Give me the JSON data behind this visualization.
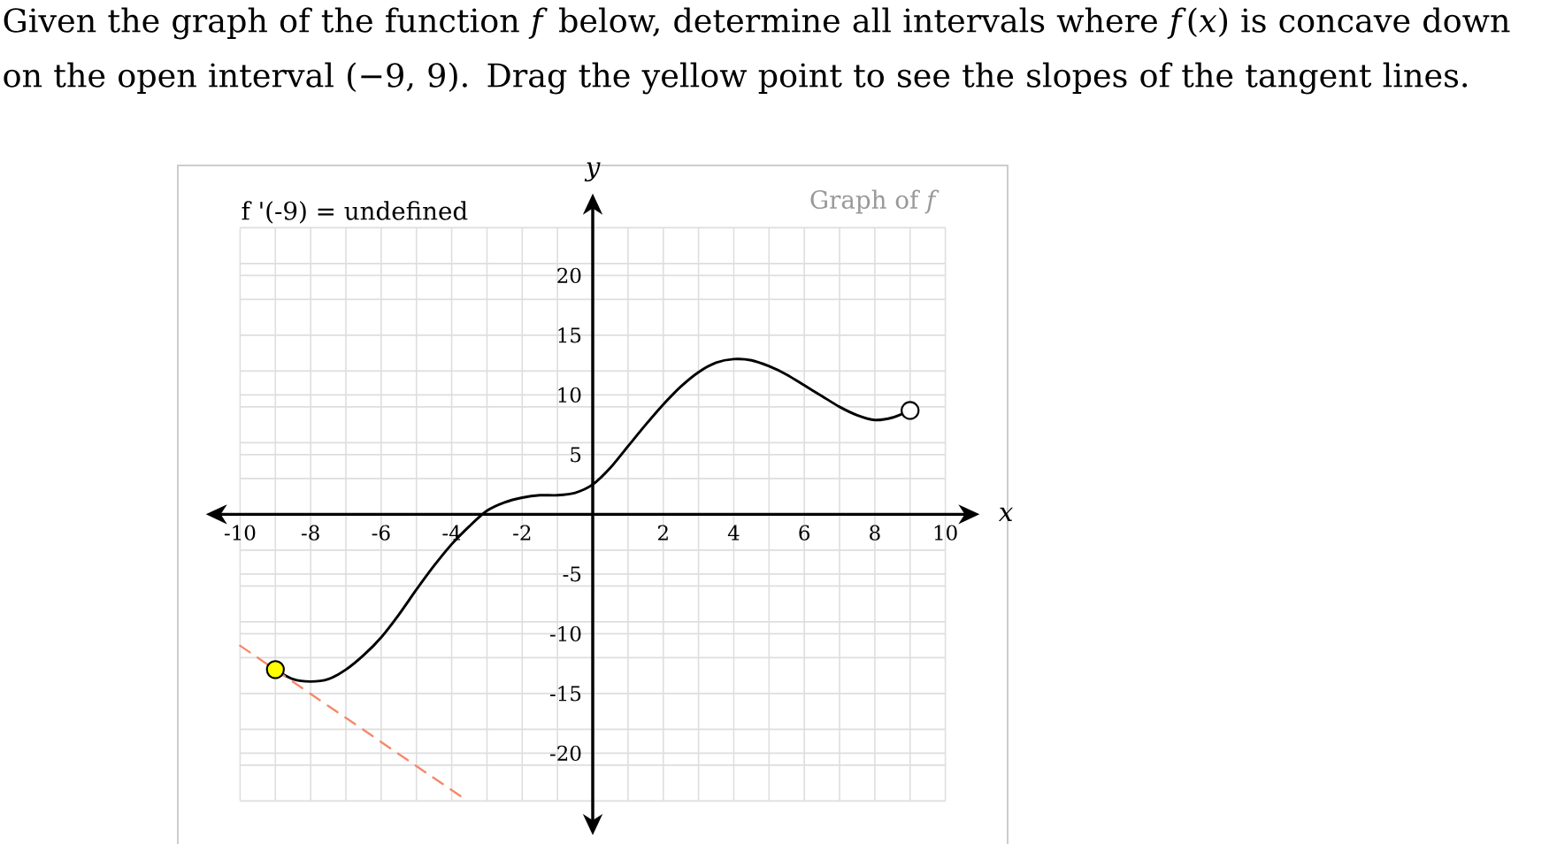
{
  "chart_data": {
    "type": "line",
    "title": "Given the graph of the function *f* below, determine all intervals where *f*(*x*) is concave down on the open interval (−9, 9). Drag the yellow point to see the slopes of the tangent lines.",
    "annotations": [
      "f '(-9) = undefined",
      "Graph of *f*"
    ],
    "xlabel": "x",
    "ylabel": "y",
    "xlim": [
      -10,
      10
    ],
    "ylim": [
      -24,
      24
    ],
    "xticks": [
      -10,
      {
        "value": -9,
        "label": null
      },
      -8,
      {
        "value": -7,
        "label": null
      },
      -6,
      {
        "value": -5,
        "label": null
      },
      -4,
      {
        "value": -3,
        "label": null
      },
      -2,
      {
        "value": -1,
        "label": null
      },
      {
        "value": 0,
        "label": null
      },
      {
        "value": 1,
        "label": null
      },
      2,
      {
        "value": 3,
        "label": null
      },
      4,
      {
        "value": 5,
        "label": null
      },
      6,
      {
        "value": 7,
        "label": null
      },
      8,
      {
        "value": 9,
        "label": null
      },
      10
    ],
    "yticks": [
      {
        "value": -24,
        "label": null
      },
      {
        "value": -21,
        "label": null
      },
      -20,
      {
        "value": -18,
        "label": null
      },
      -15,
      {
        "value": -12,
        "label": null
      },
      -10,
      {
        "value": -9,
        "label": null
      },
      {
        "value": -6,
        "label": null
      },
      -5,
      {
        "value": -3,
        "label": null
      },
      {
        "value": 0,
        "label": null
      },
      {
        "value": 3,
        "label": null
      },
      5,
      {
        "value": 6,
        "label": null
      },
      {
        "value": 9,
        "label": null
      },
      10,
      {
        "value": 12,
        "label": null
      },
      15,
      {
        "value": 18,
        "label": null
      },
      20,
      {
        "value": 21,
        "label": null
      },
      {
        "value": 24,
        "label": null
      }
    ],
    "grid": true,
    "series": [
      {
        "color": "#000000",
        "line_style": "solid",
        "x": [
          -9,
          -8.5,
          -8,
          -7.5,
          -7,
          -6.5,
          -6,
          -5.5,
          -5,
          -4.5,
          -4,
          -3.5,
          -3,
          -2.5,
          -2,
          -1.5,
          -1,
          -0.5,
          0,
          0.5,
          1,
          1.5,
          2,
          2.5,
          3,
          3.5,
          4,
          4.5,
          5,
          5.5,
          6,
          6.5,
          7,
          7.5,
          8,
          8.5,
          9
        ],
        "values": [
          -13,
          -13.8,
          -14,
          -13.8,
          -13,
          -11.8,
          -10.3,
          -8.4,
          -6.3,
          -4.3,
          -2.5,
          -1,
          0.3,
          1,
          1.4,
          1.6,
          1.6,
          1.8,
          2.5,
          3.9,
          5.7,
          7.5,
          9.2,
          10.7,
          11.9,
          12.7,
          13,
          12.9,
          12.4,
          11.7,
          10.8,
          9.9,
          9,
          8.3,
          7.9,
          8.1,
          8.7
        ]
      },
      {
        "type": "line",
        "color": "#f4896b",
        "line_style": "dashed",
        "x": [
          -10,
          -3.55
        ],
        "values": [
          -11,
          -24
        ]
      },
      {
        "type": "scatter",
        "color": "#ffff00",
        "marker": "circle",
        "x": [
          -9
        ],
        "values": [
          -13
        ]
      },
      {
        "type": "scatter",
        "color": "#ffffff",
        "marker": "circle",
        "x": [
          9
        ],
        "values": [
          8.7
        ]
      }
    ]
  }
}
